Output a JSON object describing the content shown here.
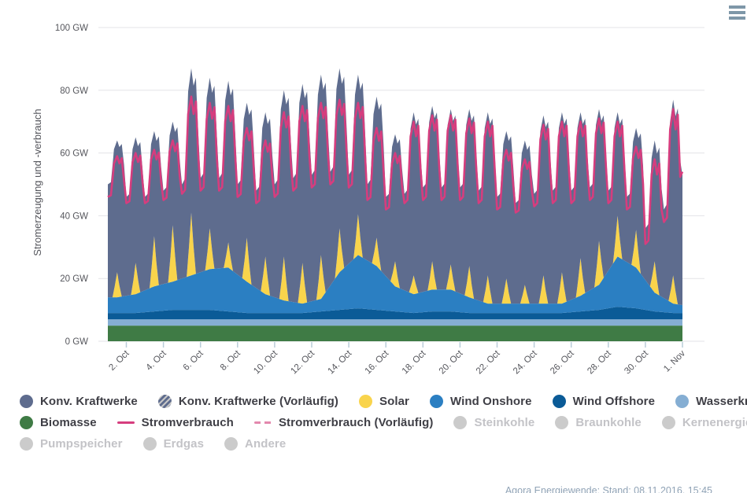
{
  "menu": {
    "icon": "hamburger-menu-icon"
  },
  "footer": {
    "source": "Agora Energiewende; Stand: 08.11.2016, 15:45"
  },
  "y_axis": {
    "title": "Stromerzeugung und -verbrauch",
    "ticks": [
      {
        "value": 0,
        "label": "0 GW"
      },
      {
        "value": 20,
        "label": "20 GW"
      },
      {
        "value": 40,
        "label": "40 GW"
      },
      {
        "value": 60,
        "label": "60 GW"
      },
      {
        "value": 80,
        "label": "80 GW"
      },
      {
        "value": 100,
        "label": "100 GW"
      }
    ]
  },
  "x_axis": {
    "labels": [
      "2. Oct",
      "4. Oct",
      "6. Oct",
      "8. Oct",
      "10. Oct",
      "12. Oct",
      "14. Oct",
      "16. Oct",
      "18. Oct",
      "20. Oct",
      "22. Oct",
      "24. Oct",
      "26. Oct",
      "28. Oct",
      "30. Oct",
      "1. Nov"
    ]
  },
  "colors": {
    "konv": "#5e6c8e",
    "solar": "#f9d44c",
    "wind_onshore": "#2b7fc2",
    "wind_offshore": "#0b5b97",
    "wasserkraft": "#85aed3",
    "biomasse": "#3f7b45",
    "stromverbrauch": "#d63d7e",
    "stromverbrauch_vorlaeufig": "#e388ad",
    "disabled": "#cbcbcb",
    "grid": "#e3e3e7",
    "axis_text": "#55565c",
    "x_tick_mark": "#b9cdd9",
    "menu_icon": "#7e97a8",
    "footer_text": "#90a3b6"
  },
  "legend": {
    "rows": [
      [
        {
          "label": "Konv. Kraftwerke",
          "swatch": "circle",
          "color": "#5e6c8e",
          "enabled": true
        },
        {
          "label": "Konv. Kraftwerke (Vorläufig)",
          "swatch": "circle-striped",
          "color": "#5e6c8e",
          "enabled": true
        },
        {
          "label": "Solar",
          "swatch": "circle",
          "color": "#f9d44c",
          "enabled": true
        },
        {
          "label": "Wind Onshore",
          "swatch": "circle",
          "color": "#2b7fc2",
          "enabled": true
        },
        {
          "label": "Wind Offshore",
          "swatch": "circle",
          "color": "#0b5b97",
          "enabled": true
        },
        {
          "label": "Wasserkraft",
          "swatch": "circle",
          "color": "#85aed3",
          "enabled": true
        }
      ],
      [
        {
          "label": "Biomasse",
          "swatch": "circle",
          "color": "#3f7b45",
          "enabled": true
        },
        {
          "label": "Stromverbrauch",
          "swatch": "line",
          "color": "#d63d7e",
          "enabled": true
        },
        {
          "label": "Stromverbrauch (Vorläufig)",
          "swatch": "line-dashed",
          "color": "#e388ad",
          "enabled": true
        },
        {
          "label": "Steinkohle",
          "swatch": "circle",
          "color": "#cbcbcb",
          "enabled": false
        },
        {
          "label": "Braunkohle",
          "swatch": "circle",
          "color": "#cbcbcb",
          "enabled": false
        },
        {
          "label": "Kernenergie",
          "swatch": "circle",
          "color": "#cbcbcb",
          "enabled": false
        }
      ],
      [
        {
          "label": "Pumpspeicher",
          "swatch": "circle",
          "color": "#cbcbcb",
          "enabled": false
        },
        {
          "label": "Erdgas",
          "swatch": "circle",
          "color": "#cbcbcb",
          "enabled": false
        },
        {
          "label": "Andere",
          "swatch": "circle",
          "color": "#cbcbcb",
          "enabled": false
        }
      ]
    ]
  },
  "chart_data": {
    "type": "area",
    "title": "",
    "xlabel": "",
    "ylabel": "Stromerzeugung und -verbrauch",
    "unit": "GW",
    "ylim": [
      0,
      100
    ],
    "x_range": [
      "1. Oct 2016",
      "1. Nov 2016"
    ],
    "grid": "horizontal",
    "legend_position": "bottom",
    "stack_series": [
      "Biomasse",
      "Wasserkraft",
      "Wind Offshore",
      "Wind Onshore",
      "Solar",
      "Konv. Kraftwerke"
    ],
    "line_series": [
      "Stromverbrauch"
    ],
    "constants": {
      "biomasse": 5,
      "wasserkraft": 2
    },
    "daily_profiles": {
      "gen": [
        [
          0,
          0
        ],
        [
          4,
          0.05
        ],
        [
          8,
          0.8
        ],
        [
          12,
          1
        ],
        [
          15,
          0.85
        ],
        [
          18,
          0.92
        ],
        [
          21,
          0.45
        ]
      ],
      "cons": [
        [
          0,
          0
        ],
        [
          4,
          0.04
        ],
        [
          8,
          0.82
        ],
        [
          12,
          1
        ],
        [
          15,
          0.82
        ],
        [
          18,
          0.95
        ],
        [
          21,
          0.4
        ]
      ],
      "sol": [
        [
          6,
          0
        ],
        [
          9,
          0.45
        ],
        [
          12,
          1
        ],
        [
          15,
          0.45
        ],
        [
          18,
          0
        ]
      ]
    },
    "days": [
      {
        "date": "1. Oct",
        "gen_low": 50,
        "gen_peak": 64,
        "cons_low": 46,
        "cons_peak": 59,
        "wind_on": 5,
        "solar_pk": 8,
        "wind_off": 2
      },
      {
        "date": "2. Oct",
        "gen_low": 46,
        "gen_peak": 65,
        "cons_low": 44,
        "cons_peak": 60,
        "wind_on": 6,
        "solar_pk": 10,
        "wind_off": 2
      },
      {
        "date": "3. Oct",
        "gen_low": 46,
        "gen_peak": 67,
        "cons_low": 44,
        "cons_peak": 61,
        "wind_on": 8,
        "solar_pk": 16,
        "wind_off": 2.5
      },
      {
        "date": "4. Oct",
        "gen_low": 48,
        "gen_peak": 70,
        "cons_low": 45,
        "cons_peak": 64,
        "wind_on": 9,
        "solar_pk": 18,
        "wind_off": 3
      },
      {
        "date": "5. Oct",
        "gen_low": 50,
        "gen_peak": 87,
        "cons_low": 47,
        "cons_peak": 78,
        "wind_on": 11,
        "solar_pk": 20,
        "wind_off": 3
      },
      {
        "date": "6. Oct",
        "gen_low": 52,
        "gen_peak": 84,
        "cons_low": 48,
        "cons_peak": 76,
        "wind_on": 13,
        "solar_pk": 13,
        "wind_off": 3
      },
      {
        "date": "7. Oct",
        "gen_low": 52,
        "gen_peak": 83,
        "cons_low": 48,
        "cons_peak": 75,
        "wind_on": 14,
        "solar_pk": 8,
        "wind_off": 2.5
      },
      {
        "date": "8. Oct",
        "gen_low": 50,
        "gen_peak": 76,
        "cons_low": 46,
        "cons_peak": 68,
        "wind_on": 10,
        "solar_pk": 14,
        "wind_off": 2
      },
      {
        "date": "9. Oct",
        "gen_low": 48,
        "gen_peak": 73,
        "cons_low": 44,
        "cons_peak": 64,
        "wind_on": 6,
        "solar_pk": 12,
        "wind_off": 2
      },
      {
        "date": "10. Oct",
        "gen_low": 50,
        "gen_peak": 80,
        "cons_low": 46,
        "cons_peak": 73,
        "wind_on": 4,
        "solar_pk": 14,
        "wind_off": 2
      },
      {
        "date": "11. Oct",
        "gen_low": 52,
        "gen_peak": 82,
        "cons_low": 48,
        "cons_peak": 75,
        "wind_on": 3,
        "solar_pk": 13,
        "wind_off": 2
      },
      {
        "date": "12. Oct",
        "gen_low": 53,
        "gen_peak": 85,
        "cons_low": 49,
        "cons_peak": 76,
        "wind_on": 4,
        "solar_pk": 14,
        "wind_off": 2.5
      },
      {
        "date": "13. Oct",
        "gen_low": 54,
        "gen_peak": 87,
        "cons_low": 50,
        "cons_peak": 77,
        "wind_on": 12,
        "solar_pk": 14,
        "wind_off": 3
      },
      {
        "date": "14. Oct",
        "gen_low": 53,
        "gen_peak": 85,
        "cons_low": 49,
        "cons_peak": 76,
        "wind_on": 17,
        "solar_pk": 13,
        "wind_off": 3.5
      },
      {
        "date": "15. Oct",
        "gen_low": 50,
        "gen_peak": 78,
        "cons_low": 45,
        "cons_peak": 68,
        "wind_on": 14,
        "solar_pk": 9,
        "wind_off": 3
      },
      {
        "date": "16. Oct",
        "gen_low": 46,
        "gen_peak": 66,
        "cons_low": 42,
        "cons_peak": 60,
        "wind_on": 8,
        "solar_pk": 8,
        "wind_off": 2.5
      },
      {
        "date": "17. Oct",
        "gen_low": 47,
        "gen_peak": 73,
        "cons_low": 44,
        "cons_peak": 70,
        "wind_on": 6,
        "solar_pk": 6,
        "wind_off": 2
      },
      {
        "date": "18. Oct",
        "gen_low": 49,
        "gen_peak": 75,
        "cons_low": 45,
        "cons_peak": 72,
        "wind_on": 7,
        "solar_pk": 9,
        "wind_off": 2.5
      },
      {
        "date": "19. Oct",
        "gen_low": 49,
        "gen_peak": 74,
        "cons_low": 45,
        "cons_peak": 72,
        "wind_on": 7,
        "solar_pk": 8,
        "wind_off": 2.5
      },
      {
        "date": "20. Oct",
        "gen_low": 49,
        "gen_peak": 74,
        "cons_low": 45,
        "cons_peak": 71,
        "wind_on": 5,
        "solar_pk": 10,
        "wind_off": 2
      },
      {
        "date": "21. Oct",
        "gen_low": 48,
        "gen_peak": 73,
        "cons_low": 44,
        "cons_peak": 70,
        "wind_on": 3,
        "solar_pk": 9,
        "wind_off": 2
      },
      {
        "date": "22. Oct",
        "gen_low": 46,
        "gen_peak": 67,
        "cons_low": 42,
        "cons_peak": 61,
        "wind_on": 3,
        "solar_pk": 8,
        "wind_off": 2
      },
      {
        "date": "23. Oct",
        "gen_low": 44,
        "gen_peak": 64,
        "cons_low": 41,
        "cons_peak": 58,
        "wind_on": 3,
        "solar_pk": 6,
        "wind_off": 2
      },
      {
        "date": "24. Oct",
        "gen_low": 47,
        "gen_peak": 72,
        "cons_low": 43,
        "cons_peak": 69,
        "wind_on": 3,
        "solar_pk": 9,
        "wind_off": 2
      },
      {
        "date": "25. Oct",
        "gen_low": 48,
        "gen_peak": 73,
        "cons_low": 44,
        "cons_peak": 70,
        "wind_on": 3,
        "solar_pk": 10,
        "wind_off": 2
      },
      {
        "date": "26. Oct",
        "gen_low": 48,
        "gen_peak": 73,
        "cons_low": 44,
        "cons_peak": 70,
        "wind_on": 5,
        "solar_pk": 12,
        "wind_off": 2.5
      },
      {
        "date": "27. Oct",
        "gen_low": 49,
        "gen_peak": 74,
        "cons_low": 45,
        "cons_peak": 71,
        "wind_on": 8,
        "solar_pk": 14,
        "wind_off": 3
      },
      {
        "date": "28. Oct",
        "gen_low": 48,
        "gen_peak": 73,
        "cons_low": 44,
        "cons_peak": 70,
        "wind_on": 16,
        "solar_pk": 13,
        "wind_off": 4
      },
      {
        "date": "29. Oct",
        "gen_low": 46,
        "gen_peak": 68,
        "cons_low": 42,
        "cons_peak": 62,
        "wind_on": 13,
        "solar_pk": 12,
        "wind_off": 3.5
      },
      {
        "date": "30. Oct",
        "gen_low": 36,
        "gen_peak": 64,
        "cons_low": 31,
        "cons_peak": 58,
        "wind_on": 6,
        "solar_pk": 10,
        "wind_off": 2.5
      },
      {
        "date": "31. Oct",
        "gen_low": 42,
        "gen_peak": 77,
        "cons_low": 38,
        "cons_peak": 74,
        "wind_on": 3,
        "solar_pk": 9,
        "wind_off": 2
      }
    ],
    "end": {
      "gen": 53,
      "cons": 54,
      "wind_on": 2.5,
      "wind_off": 2
    }
  }
}
